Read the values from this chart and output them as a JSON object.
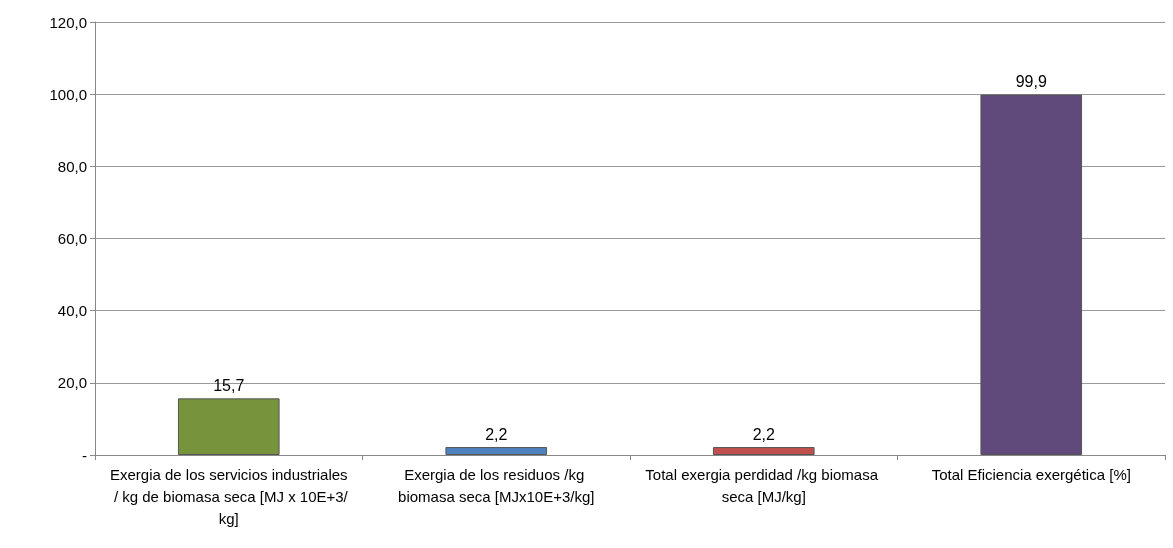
{
  "chart_data": {
    "type": "bar",
    "categories": [
      "Exergia de los servicios industriales / kg de biomasa seca [MJ x 10E+3/kg]",
      "Exergia de los residuos /kg biomasa seca [MJx10E+3/kg]",
      "Total exergia perdidad /kg biomasa seca [MJ/kg]",
      "Total Eficiencia exergética [%]"
    ],
    "values": [
      15.7,
      2.2,
      2.2,
      99.9
    ],
    "colors": [
      "#77933c",
      "#4f81bd",
      "#c0504d",
      "#604a7b"
    ],
    "value_labels": [
      "15,7",
      "2,2",
      "2,2",
      "99,9"
    ],
    "ylim": [
      0,
      120
    ],
    "yticks": [
      {
        "value": 0,
        "label": "-"
      },
      {
        "value": 20,
        "label": "20,0"
      },
      {
        "value": 40,
        "label": "40,0"
      },
      {
        "value": 60,
        "label": "60,0"
      },
      {
        "value": 80,
        "label": "80,0"
      },
      {
        "value": 100,
        "label": "100,0"
      },
      {
        "value": 120,
        "label": "120,0"
      }
    ],
    "grid": "y"
  }
}
